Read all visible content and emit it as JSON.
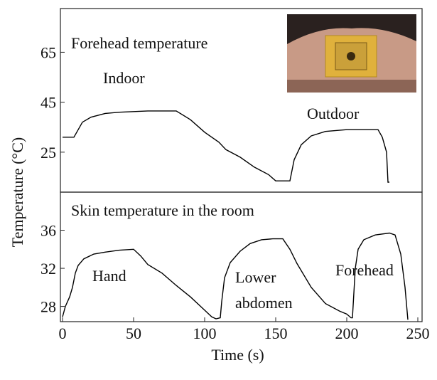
{
  "chart_data": [
    {
      "type": "line",
      "title": "Forehead temperature",
      "ylabel": "Temperature (°C)",
      "annotations": [
        "Indoor",
        "Outdoor"
      ],
      "x": [
        0,
        8,
        10,
        14,
        20,
        30,
        40,
        60,
        80,
        90,
        100,
        110,
        115,
        125,
        135,
        145,
        150,
        158,
        160,
        163,
        168,
        175,
        185,
        200,
        215,
        222,
        225,
        228,
        229,
        230
      ],
      "values": [
        31,
        31,
        33,
        37,
        39,
        40.5,
        41,
        41.5,
        41.5,
        38,
        33,
        29,
        26,
        23,
        19,
        16,
        13.5,
        13.5,
        13.5,
        22,
        28,
        31.5,
        33.3,
        34,
        34,
        34,
        31,
        25,
        13,
        13
      ],
      "color": "#000000",
      "xlim": [
        -1.5,
        253
      ],
      "ylim": [
        9,
        82.5
      ],
      "yticks": [
        25,
        45,
        65
      ]
    },
    {
      "type": "line",
      "title": "Skin temperature in the room",
      "xlabel": "Time (s)",
      "annotations": [
        "Hand",
        "Lower abdomen",
        "Forehead"
      ],
      "x": [
        0,
        2,
        5,
        7,
        9,
        11,
        15,
        22,
        30,
        40,
        50,
        55,
        60,
        70,
        80,
        90,
        100,
        105,
        108,
        111,
        112,
        114,
        118,
        125,
        132,
        140,
        148,
        155,
        160,
        165,
        175,
        185,
        195,
        200,
        203,
        204,
        206,
        208,
        212,
        220,
        230,
        234,
        238,
        241,
        243
      ],
      "values": [
        26.9,
        28,
        29,
        30,
        31.5,
        32.3,
        33,
        33.5,
        33.7,
        33.9,
        34,
        33.3,
        32.4,
        31.5,
        30.2,
        29,
        27.6,
        26.9,
        26.7,
        26.8,
        28.5,
        31,
        32.6,
        33.8,
        34.6,
        35,
        35.1,
        35.1,
        34,
        32.5,
        30,
        28.3,
        27.5,
        27.2,
        26.8,
        26.8,
        32,
        34,
        35,
        35.5,
        35.7,
        35.5,
        33.5,
        30,
        26.6
      ],
      "color": "#000000",
      "xlim": [
        -1.5,
        253
      ],
      "ylim": [
        26.4,
        40
      ],
      "yticks": [
        28,
        32,
        36
      ],
      "xticks": [
        0,
        50,
        100,
        150,
        200,
        250
      ]
    }
  ]
}
